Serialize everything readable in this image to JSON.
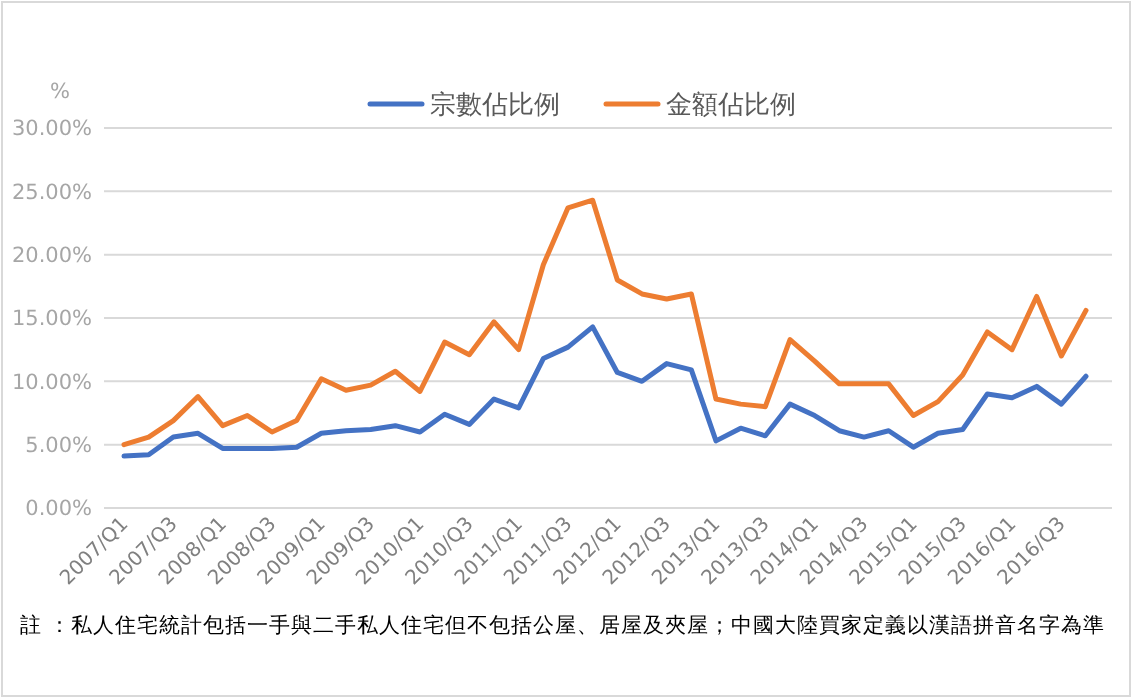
{
  "chart_data": {
    "type": "line",
    "ylabel": "%",
    "categories": [
      "2007/Q1",
      null,
      "2007/Q3",
      null,
      "2008/Q1",
      null,
      "2008/Q3",
      null,
      "2009/Q1",
      null,
      "2009/Q3",
      null,
      "2010/Q1",
      null,
      "2010/Q3",
      null,
      "2011/Q1",
      null,
      "2011/Q3",
      null,
      "2012/Q1",
      null,
      "2012/Q3",
      null,
      "2013/Q1",
      null,
      "2013/Q3",
      null,
      "2014/Q1",
      null,
      "2014/Q3",
      null,
      "2015/Q1",
      null,
      "2015/Q3",
      null,
      "2016/Q1",
      null,
      "2016/Q3",
      null
    ],
    "series": [
      {
        "name": "宗數佔比例",
        "color": "#4472c4",
        "values": [
          4.1,
          4.2,
          5.6,
          5.9,
          4.7,
          4.7,
          4.7,
          4.8,
          5.9,
          6.1,
          6.2,
          6.5,
          6.0,
          7.4,
          6.6,
          8.6,
          7.9,
          11.8,
          12.7,
          14.3,
          10.7,
          10.0,
          11.4,
          10.9,
          5.3,
          6.3,
          5.7,
          8.2,
          7.3,
          6.1,
          5.6,
          6.1,
          4.8,
          5.9,
          6.2,
          9.0,
          8.7,
          9.6,
          8.2,
          10.4
        ]
      },
      {
        "name": "金額佔比例",
        "color": "#ed7d31",
        "values": [
          5.0,
          5.6,
          6.9,
          8.8,
          6.5,
          7.3,
          6.0,
          6.9,
          10.2,
          9.3,
          9.7,
          10.8,
          9.2,
          13.1,
          12.1,
          14.7,
          12.5,
          19.2,
          23.7,
          24.3,
          18.0,
          16.9,
          16.5,
          16.9,
          8.6,
          8.2,
          8.0,
          13.3,
          11.6,
          9.8,
          9.8,
          9.8,
          7.3,
          8.4,
          10.5,
          13.9,
          12.5,
          16.7,
          12.0,
          15.6
        ]
      }
    ],
    "ylim": [
      0,
      30
    ],
    "yticks": [
      {
        "value": 0,
        "label": "0.00%"
      },
      {
        "value": 5,
        "label": "5.00%"
      },
      {
        "value": 10,
        "label": "10.00%"
      },
      {
        "value": 15,
        "label": "15.00%"
      },
      {
        "value": 20,
        "label": "20.00%"
      },
      {
        "value": 25,
        "label": "25.00%"
      },
      {
        "value": 30,
        "label": "30.00%"
      }
    ],
    "grid": "y",
    "legend": "top",
    "marker": "none",
    "line_style": "solid",
    "annotations": [
      "註 ：私人住宅統計包括一手與二手私人住宅但不包括公屋、居屋及夾屋；中國大陸買家定義以漢語拼音名字為準"
    ]
  }
}
